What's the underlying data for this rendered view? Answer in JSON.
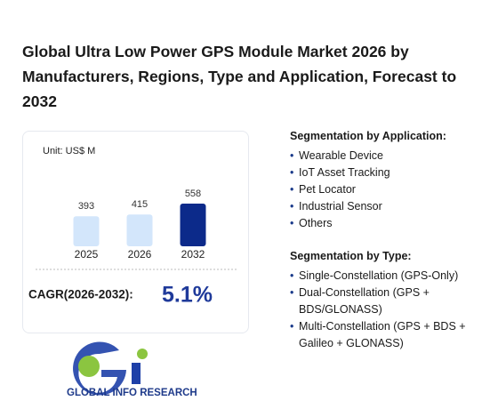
{
  "title": "Global Ultra Low Power GPS Module Market 2026 by Manufacturers, Regions, Type and Application, Forecast to 2032",
  "chart_data": {
    "type": "bar",
    "unit": "Unit: US$ M",
    "categories": [
      "2025",
      "2026",
      "2032"
    ],
    "values": [
      393,
      415,
      558
    ],
    "colors": [
      "#d3e6fb",
      "#d3e6fb",
      "#0c2a8a"
    ]
  },
  "cagr": {
    "label": "CAGR(2026-2032):",
    "value": "5.1%"
  },
  "logo": "GLOBAL INFO RESEARCH",
  "segmentation": [
    {
      "heading": "Segmentation by Application:",
      "items": [
        "Wearable Device",
        "IoT Asset Tracking",
        "Pet Locator",
        "Industrial Sensor",
        "Others"
      ]
    },
    {
      "heading": "Segmentation by Type:",
      "items": [
        "Single-Constellation (GPS-Only)",
        "Dual-Constellation (GPS + BDS/GLONASS)",
        "Multi-Constellation (GPS + BDS + Galileo + GLONASS)"
      ]
    }
  ]
}
